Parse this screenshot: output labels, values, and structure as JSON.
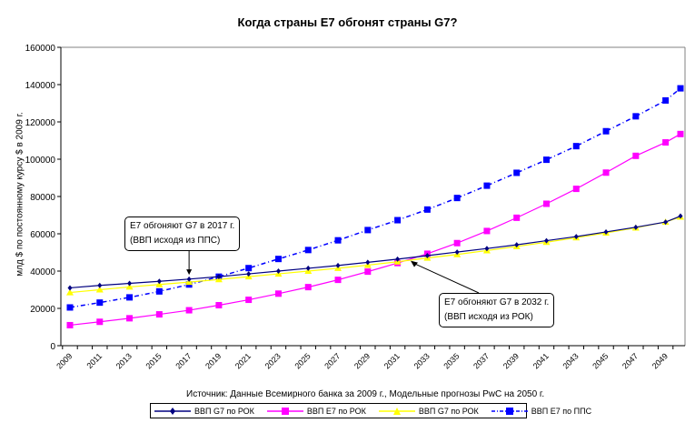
{
  "chart_data": {
    "type": "line",
    "title": "Когда страны E7 обгонят страны G7?",
    "xlabel": "",
    "ylabel": "млд $ по постоянному курсу $ в 2009 г.",
    "source": "Источник: Данные Всемирного банка за 2009 г., Модельные прогнозы PwC на  2050 г.",
    "ylim": [
      0,
      160000
    ],
    "yticks": [
      0,
      20000,
      40000,
      60000,
      80000,
      100000,
      120000,
      140000,
      160000
    ],
    "ytick_labels": [
      "0",
      "20000",
      "40000",
      "60000",
      "80000",
      "100000",
      "120000",
      "140000",
      "160000"
    ],
    "xlim": [
      2009,
      2050
    ],
    "xtick_labels": [
      "2009",
      "2011",
      "2013",
      "2015",
      "2017",
      "2019",
      "2021",
      "2023",
      "2025",
      "2027",
      "2029",
      "2031",
      "2033",
      "2035",
      "2037",
      "2039",
      "2041",
      "2043",
      "2045",
      "2047",
      "2049"
    ],
    "grid": false,
    "legend_position": "bottom",
    "x": [
      2009,
      2011,
      2013,
      2015,
      2017,
      2019,
      2021,
      2023,
      2025,
      2027,
      2029,
      2031,
      2033,
      2035,
      2037,
      2039,
      2041,
      2043,
      2045,
      2047,
      2049,
      2050
    ],
    "series": [
      {
        "name": "ВВП G7 по РОК",
        "color": "#000080",
        "marker": "diamond",
        "dash": "solid",
        "values": [
          31000,
          32300,
          33400,
          34500,
          35700,
          37000,
          38500,
          40000,
          41500,
          43000,
          44700,
          46400,
          48300,
          50200,
          52100,
          54100,
          56300,
          58500,
          61000,
          63500,
          66300,
          69500
        ]
      },
      {
        "name": "ВВП E7 по РОК",
        "color": "#FF00FF",
        "marker": "square",
        "dash": "solid",
        "values": [
          11000,
          12800,
          14700,
          16800,
          19000,
          21700,
          24600,
          27900,
          31400,
          35300,
          39700,
          44300,
          49300,
          55000,
          61500,
          68600,
          76100,
          84100,
          92800,
          101800,
          109000,
          113500
        ]
      },
      {
        "name": "ВВП G7 по РОК",
        "color": "#FFFF00",
        "marker": "triangle",
        "dash": "solid",
        "values": [
          28500,
          30000,
          31500,
          32800,
          34100,
          35500,
          37000,
          38500,
          40000,
          41500,
          43200,
          45000,
          47000,
          48900,
          51000,
          53200,
          55500,
          57900,
          60500,
          63200,
          66300,
          69000
        ]
      },
      {
        "name": "ВВП E7 по ППС",
        "color": "#0000FF",
        "marker": "square",
        "dash": "dashdot",
        "values": [
          20500,
          23100,
          25900,
          29100,
          32800,
          37000,
          41600,
          46500,
          51300,
          56500,
          62000,
          67300,
          73000,
          79200,
          85800,
          92700,
          99700,
          107000,
          115000,
          123000,
          131500,
          138000
        ]
      }
    ],
    "annotations": [
      {
        "text_line1": "E7 обгоняют G7 в 2017 г.",
        "text_line2": "(ВВП исходя из ППС)",
        "points_to_year": 2017
      },
      {
        "text_line1": "E7 обгоняют G7 в 2032 г.",
        "text_line2": "(ВВП исходя из РОК)",
        "points_to_year": 2032
      }
    ]
  }
}
